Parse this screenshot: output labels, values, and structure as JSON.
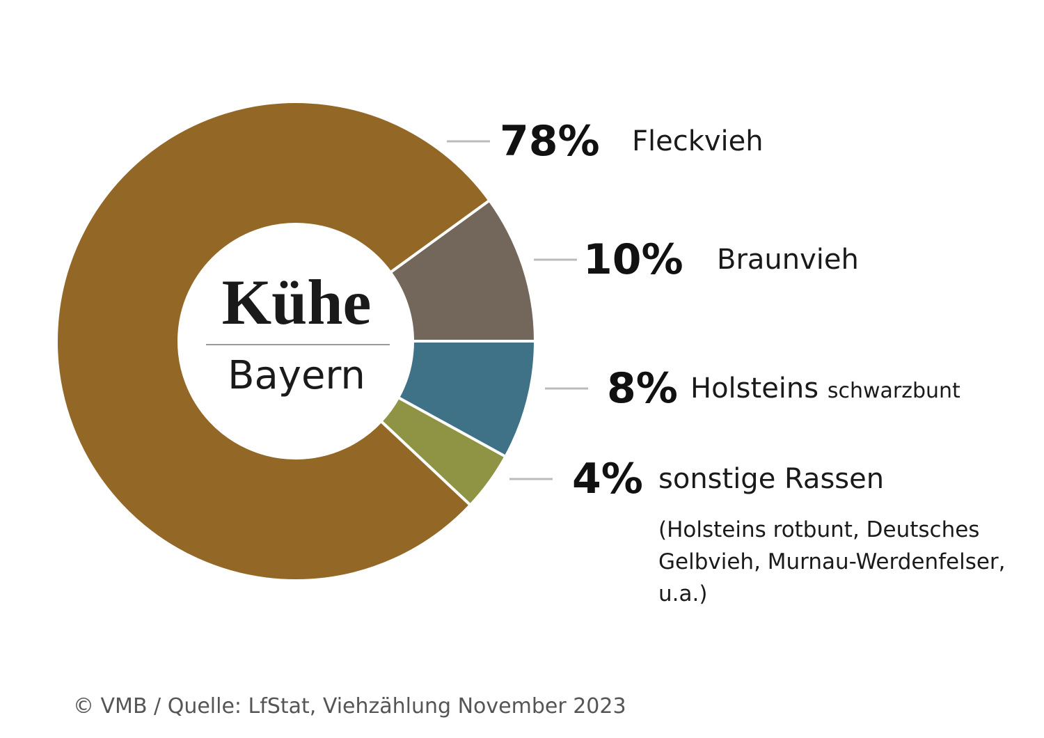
{
  "chart_data": {
    "type": "donut",
    "title": "Kühe",
    "subtitle": "Bayern",
    "categories": [
      "Fleckvieh",
      "Braunvieh",
      "Holsteins",
      "sonstige Rassen"
    ],
    "category_notes": [
      null,
      null,
      "schwarzbunt",
      "(Holsteins rotbunt, Deutsches Gelbvieh, Murnau-Werdenfelser, u.a.)"
    ],
    "values": [
      78,
      10,
      8,
      4
    ],
    "value_labels": [
      "78%",
      "10%",
      "8%",
      "4%"
    ],
    "colors": [
      "#936726",
      "#73665a",
      "#3f7287",
      "#8f9444"
    ],
    "source": "© VMB / Quelle: LfStat, Viehzählung November 2023"
  }
}
